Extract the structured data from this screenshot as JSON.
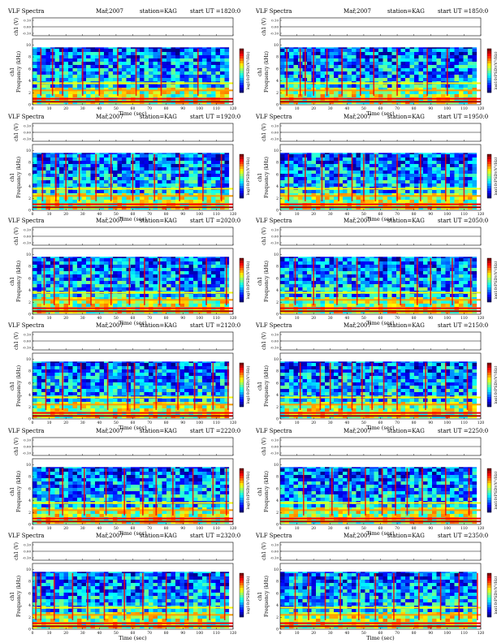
{
  "header_fields": {
    "program": "VLF Spectra",
    "date": "Mař,2007",
    "station": "station=KAG",
    "start_prefix": "start  UT  ="
  },
  "common_labels": {
    "waveform_ylabel": "ch1 (V)",
    "spectrogram_ylabel": "ch1\nFrequency (kHz)",
    "xlabel": "Time  (sec)",
    "colorbar_label": "log10(PSD)(V²/Hz)"
  },
  "chart_data": [
    {
      "type": "heatmap",
      "start_ut": "1820:0",
      "x_ticks": [
        0,
        10,
        20,
        30,
        40,
        50,
        60,
        70,
        80,
        90,
        100,
        110,
        120
      ],
      "y_ticks": [
        0,
        2,
        4,
        6,
        8,
        10
      ],
      "waveform_ticks": [
        "0.10",
        "0.00",
        "-0.10"
      ],
      "vertical_bursts_sec": [
        5,
        12,
        18,
        30,
        40,
        51,
        62,
        77,
        99
      ]
    },
    {
      "type": "heatmap",
      "start_ut": "1850:0",
      "x_ticks": [
        0,
        10,
        20,
        30,
        40,
        50,
        60,
        70,
        80,
        90,
        100,
        110,
        120
      ],
      "y_ticks": [
        0,
        2,
        4,
        6,
        8,
        10
      ],
      "waveform_ticks": [
        "0.10",
        "0.00",
        "-0.10"
      ],
      "vertical_bursts_sec": [
        4,
        12,
        15,
        20,
        28,
        37,
        48,
        56,
        70,
        88,
        100
      ]
    },
    {
      "type": "heatmap",
      "start_ut": "1920:0",
      "x_ticks": [
        0,
        10,
        20,
        30,
        40,
        50,
        60,
        70,
        80,
        90,
        100,
        110,
        120
      ],
      "y_ticks": [
        0,
        2,
        4,
        6,
        8,
        10
      ],
      "waveform_ticks": [
        "0.10",
        "0.00",
        "-0.10"
      ],
      "vertical_bursts_sec": [
        6,
        14,
        20,
        28,
        38,
        47,
        60,
        73,
        88,
        102,
        113
      ]
    },
    {
      "type": "heatmap",
      "start_ut": "1950:0",
      "x_ticks": [
        0,
        10,
        20,
        30,
        40,
        50,
        60,
        70,
        80,
        90,
        100,
        110,
        120
      ],
      "y_ticks": [
        0,
        2,
        4,
        6,
        8,
        10
      ],
      "waveform_ticks": [
        "0.10",
        "0.00",
        "-0.10"
      ],
      "vertical_bursts_sec": [
        5,
        15,
        25,
        35,
        43,
        50,
        57,
        70,
        84,
        99,
        110
      ]
    },
    {
      "type": "heatmap",
      "start_ut": "2020:0",
      "x_ticks": [
        0,
        10,
        20,
        30,
        40,
        50,
        60,
        70,
        80,
        90,
        100,
        110,
        120
      ],
      "y_ticks": [
        0,
        2,
        4,
        6,
        8,
        10
      ],
      "waveform_ticks": [
        "0.10",
        "0.00",
        "-0.10"
      ],
      "vertical_bursts_sec": [
        7,
        13,
        22,
        35,
        47,
        58,
        67,
        76,
        88,
        104,
        116
      ]
    },
    {
      "type": "heatmap",
      "start_ut": "2050:0",
      "x_ticks": [
        0,
        10,
        20,
        30,
        40,
        50,
        60,
        70,
        80,
        90,
        100,
        110,
        120
      ],
      "y_ticks": [
        0,
        2,
        4,
        6,
        8,
        10
      ],
      "waveform_ticks": [
        "0.10",
        "0.00",
        "-0.10"
      ],
      "vertical_bursts_sec": [
        9,
        20,
        34,
        46,
        59,
        72,
        82,
        90,
        103,
        114
      ]
    },
    {
      "type": "heatmap",
      "start_ut": "2120:0",
      "x_ticks": [
        0,
        10,
        20,
        30,
        40,
        50,
        60,
        70,
        80,
        90,
        100,
        110,
        120
      ],
      "y_ticks": [
        0,
        2,
        4,
        6,
        8,
        10
      ],
      "waveform_ticks": [
        "0.10",
        "0.00",
        "-0.10"
      ],
      "vertical_bursts_sec": [
        8,
        18,
        29,
        45,
        57,
        61,
        74,
        87,
        97,
        108,
        117
      ]
    },
    {
      "type": "heatmap",
      "start_ut": "2150:0",
      "x_ticks": [
        0,
        10,
        20,
        30,
        40,
        50,
        60,
        70,
        80,
        90,
        100,
        110,
        120
      ],
      "y_ticks": [
        0,
        2,
        4,
        6,
        8,
        10
      ],
      "waveform_ticks": [
        "0.10",
        "0.00",
        "-0.10"
      ],
      "vertical_bursts_sec": [
        12,
        24,
        30,
        37,
        43,
        49,
        55,
        62,
        70,
        87,
        99,
        112
      ]
    },
    {
      "type": "heatmap",
      "start_ut": "2220:0",
      "x_ticks": [
        0,
        10,
        20,
        30,
        40,
        50,
        60,
        70,
        80,
        90,
        100,
        110,
        120
      ],
      "y_ticks": [
        0,
        2,
        4,
        6,
        8,
        10
      ],
      "waveform_ticks": [
        "0.10",
        "0.00",
        "-0.10"
      ],
      "vertical_bursts_sec": [
        10,
        18,
        31,
        44,
        55,
        66,
        74,
        84,
        96,
        108,
        116
      ]
    },
    {
      "type": "heatmap",
      "start_ut": "2250:0",
      "x_ticks": [
        0,
        10,
        20,
        30,
        40,
        50,
        60,
        70,
        80,
        90,
        100,
        110,
        120
      ],
      "y_ticks": [
        0,
        2,
        4,
        6,
        8,
        10
      ],
      "waveform_ticks": [
        "0.10",
        "0.00",
        "-0.10"
      ],
      "vertical_bursts_sec": [
        14,
        31,
        41,
        51,
        61,
        69,
        76,
        85,
        99,
        113
      ]
    },
    {
      "type": "heatmap",
      "start_ut": "2320:0",
      "x_ticks": [
        0,
        10,
        20,
        30,
        40,
        50,
        60,
        70,
        80,
        90,
        100,
        110,
        120
      ],
      "y_ticks": [
        0,
        2,
        4,
        6,
        8,
        10
      ],
      "waveform_ticks": [
        "0.10",
        "0.00",
        "-0.10"
      ],
      "vertical_bursts_sec": [
        2,
        5,
        13,
        24,
        33,
        43,
        55,
        66,
        80,
        93,
        106,
        115
      ]
    },
    {
      "type": "heatmap",
      "start_ut": "2350:0",
      "x_ticks": [
        0,
        10,
        20,
        30,
        40,
        50,
        60,
        70,
        80,
        90,
        100,
        110,
        120
      ],
      "y_ticks": [
        0,
        2,
        4,
        6,
        8,
        10
      ],
      "waveform_ticks": [
        "0.10",
        "0.00",
        "-0.10"
      ],
      "vertical_bursts_sec": [
        9,
        17,
        27,
        36,
        47,
        57,
        68,
        83,
        96,
        107,
        118
      ]
    }
  ]
}
